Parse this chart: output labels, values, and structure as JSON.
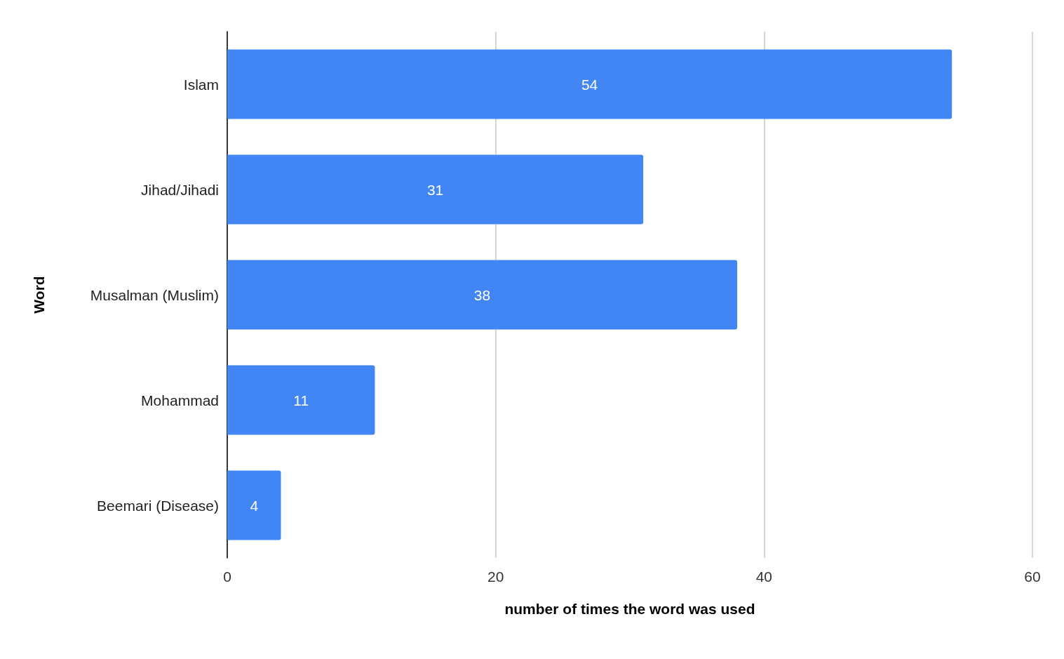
{
  "chart_data": {
    "type": "bar",
    "orientation": "horizontal",
    "xlabel": "number of times the word was used",
    "ylabel": "Word",
    "categories": [
      "Islam",
      "Jihad/Jihadi",
      "Musalman (Muslim)",
      "Mohammad",
      "Beemari (Disease)"
    ],
    "values": [
      54,
      31,
      38,
      11,
      4
    ],
    "color": "#4285f4",
    "xlim": [
      0,
      60
    ],
    "xticks": [
      0,
      20,
      40,
      60
    ],
    "grid": "x",
    "data_labels": true
  }
}
